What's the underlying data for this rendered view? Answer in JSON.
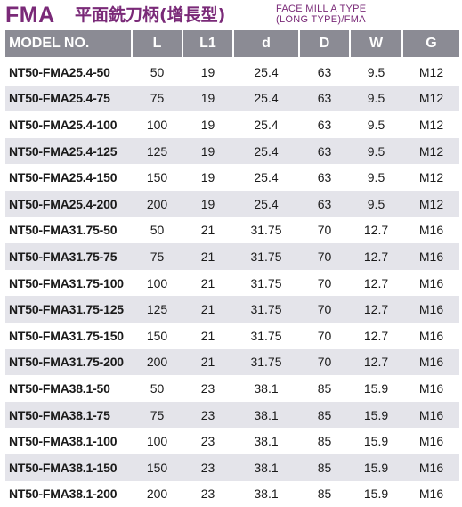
{
  "header": {
    "code": "FMA",
    "title_cn": "平面銑刀柄(增長型)",
    "title_en_line1": "FACE MILL A TYPE",
    "title_en_line2": "(LONG TYPE)/FMA",
    "accent_color": "#7a2a78"
  },
  "table": {
    "columns": [
      "MODEL NO.",
      "L",
      "L1",
      "d",
      "D",
      "W",
      "G"
    ],
    "rows": [
      [
        "NT50-FMA25.4-50",
        "50",
        "19",
        "25.4",
        "63",
        "9.5",
        "M12"
      ],
      [
        "NT50-FMA25.4-75",
        "75",
        "19",
        "25.4",
        "63",
        "9.5",
        "M12"
      ],
      [
        "NT50-FMA25.4-100",
        "100",
        "19",
        "25.4",
        "63",
        "9.5",
        "M12"
      ],
      [
        "NT50-FMA25.4-125",
        "125",
        "19",
        "25.4",
        "63",
        "9.5",
        "M12"
      ],
      [
        "NT50-FMA25.4-150",
        "150",
        "19",
        "25.4",
        "63",
        "9.5",
        "M12"
      ],
      [
        "NT50-FMA25.4-200",
        "200",
        "19",
        "25.4",
        "63",
        "9.5",
        "M12"
      ],
      [
        "NT50-FMA31.75-50",
        "50",
        "21",
        "31.75",
        "70",
        "12.7",
        "M16"
      ],
      [
        "NT50-FMA31.75-75",
        "75",
        "21",
        "31.75",
        "70",
        "12.7",
        "M16"
      ],
      [
        "NT50-FMA31.75-100",
        "100",
        "21",
        "31.75",
        "70",
        "12.7",
        "M16"
      ],
      [
        "NT50-FMA31.75-125",
        "125",
        "21",
        "31.75",
        "70",
        "12.7",
        "M16"
      ],
      [
        "NT50-FMA31.75-150",
        "150",
        "21",
        "31.75",
        "70",
        "12.7",
        "M16"
      ],
      [
        "NT50-FMA31.75-200",
        "200",
        "21",
        "31.75",
        "70",
        "12.7",
        "M16"
      ],
      [
        "NT50-FMA38.1-50",
        "50",
        "23",
        "38.1",
        "85",
        "15.9",
        "M16"
      ],
      [
        "NT50-FMA38.1-75",
        "75",
        "23",
        "38.1",
        "85",
        "15.9",
        "M16"
      ],
      [
        "NT50-FMA38.1-100",
        "100",
        "23",
        "38.1",
        "85",
        "15.9",
        "M16"
      ],
      [
        "NT50-FMA38.1-150",
        "150",
        "23",
        "38.1",
        "85",
        "15.9",
        "M16"
      ],
      [
        "NT50-FMA38.1-200",
        "200",
        "23",
        "38.1",
        "85",
        "15.9",
        "M16"
      ]
    ]
  }
}
